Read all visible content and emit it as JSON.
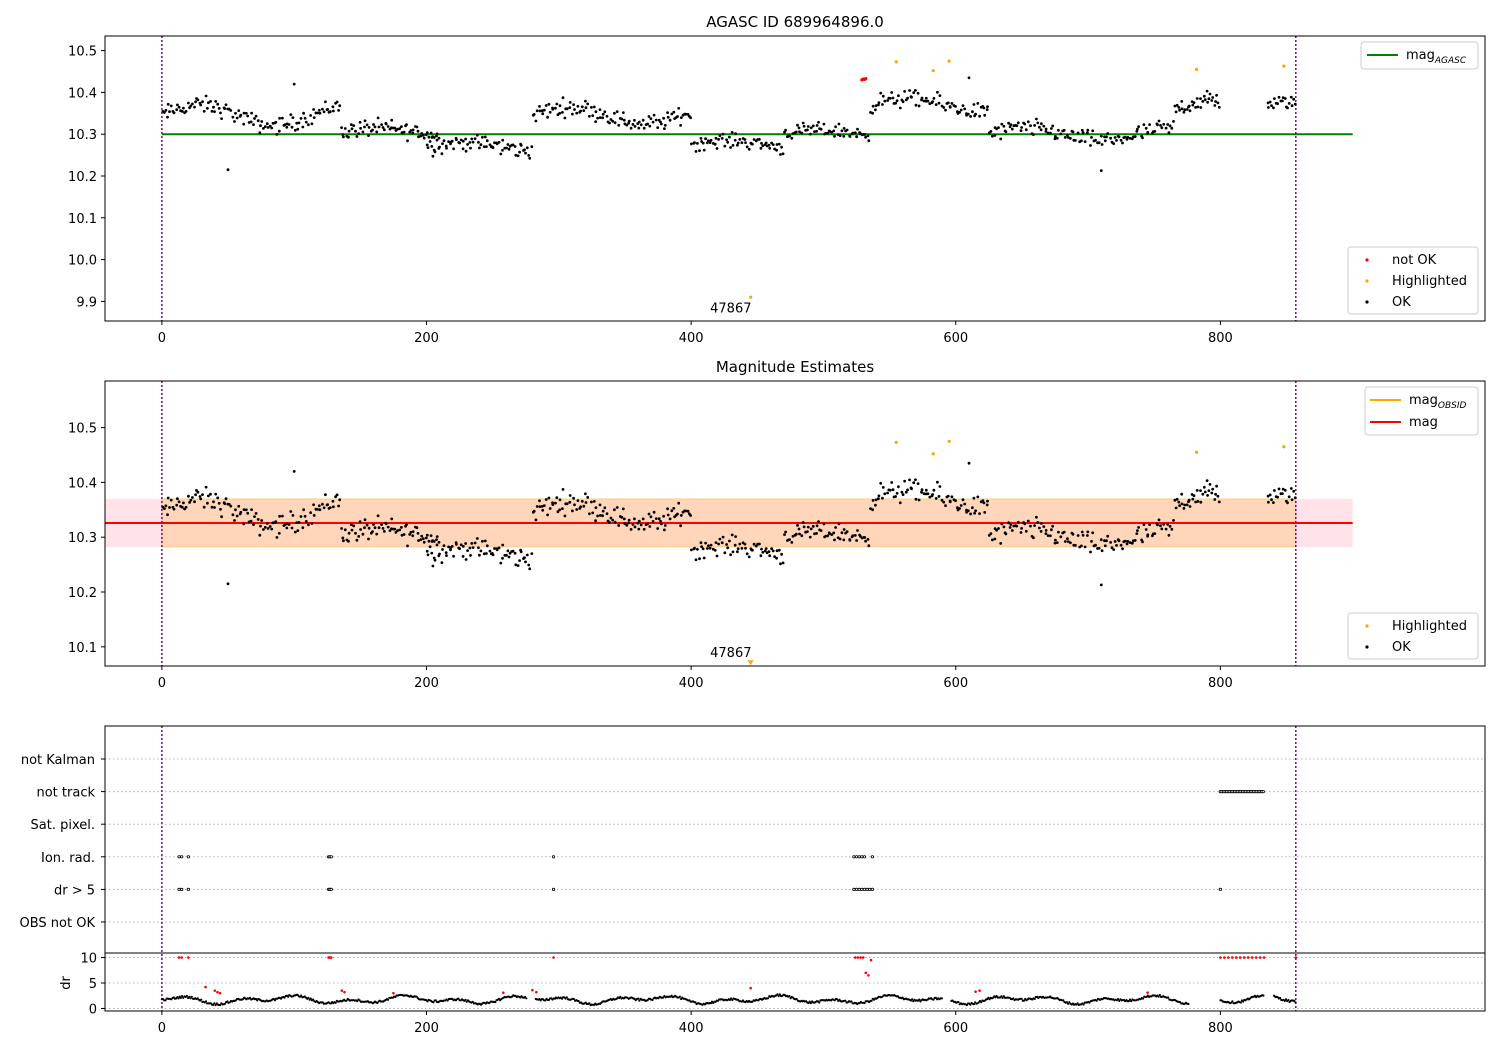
{
  "chart_data": [
    {
      "type": "scatter",
      "title": "AGASC ID 689964896.0",
      "xlim": [
        -43,
        1000
      ],
      "ylim": [
        9.853,
        10.535
      ],
      "xticks": [
        "0",
        "200",
        "400",
        "600",
        "800"
      ],
      "yticks": [
        "9.9",
        "10.0",
        "10.1",
        "10.2",
        "10.3",
        "10.4",
        "10.5"
      ],
      "ytick_values": [
        9.9,
        10.0,
        10.1,
        10.2,
        10.3,
        10.4,
        10.5
      ],
      "vlines": [
        0,
        857
      ],
      "hline": {
        "name": "mag_AGASC",
        "legend_label": "mag",
        "legend_sub": "AGASC",
        "y": 10.3,
        "x": [
          0,
          900
        ],
        "color": "#008000"
      },
      "annotation": {
        "text": "47867",
        "x": 430,
        "y": 9.873
      },
      "legend_top": {
        "position": "top-right",
        "entries": [
          {
            "label": "mag",
            "sub": "AGASC",
            "color": "#008000"
          }
        ]
      },
      "legend_bottom": {
        "position": "bottom-right",
        "entries": [
          {
            "label": "not OK",
            "color": "#ff0000"
          },
          {
            "label": "Highlighted",
            "color": "#ffa500"
          },
          {
            "label": "OK",
            "color": "#000000"
          }
        ]
      },
      "series": [
        {
          "name": "not OK",
          "color": "#ff0000",
          "points": [
            [
              529,
              10.43
            ],
            [
              530,
              10.432
            ],
            [
              531,
              10.431
            ],
            [
              532,
              10.433
            ]
          ]
        },
        {
          "name": "Highlighted",
          "color": "#ffa500",
          "points": [
            [
              445,
              9.91
            ],
            [
              555,
              10.473
            ],
            [
              583,
              10.452
            ],
            [
              595,
              10.475
            ],
            [
              782,
              10.455
            ],
            [
              848,
              10.463
            ]
          ]
        },
        {
          "name": "OK",
          "color": "#000000",
          "segments": [
            {
              "x0": 0,
              "x1": 135,
              "level": 10.345,
              "amp": 0.025,
              "spread": 0.03,
              "n": 120
            },
            {
              "x0": 135,
              "x1": 210,
              "level": 10.305,
              "amp": 0.01,
              "spread": 0.03,
              "n": 70
            },
            {
              "x0": 200,
              "x1": 280,
              "level": 10.27,
              "amp": 0.01,
              "spread": 0.03,
              "n": 75
            },
            {
              "x0": 280,
              "x1": 400,
              "level": 10.345,
              "amp": 0.02,
              "spread": 0.03,
              "n": 110
            },
            {
              "x0": 400,
              "x1": 470,
              "level": 10.275,
              "amp": 0.01,
              "spread": 0.025,
              "n": 65
            },
            {
              "x0": 470,
              "x1": 535,
              "level": 10.3,
              "amp": 0.01,
              "spread": 0.025,
              "n": 60
            },
            {
              "x0": 535,
              "x1": 625,
              "level": 10.37,
              "amp": 0.015,
              "spread": 0.03,
              "n": 80
            },
            {
              "x0": 625,
              "x1": 765,
              "level": 10.3,
              "amp": 0.015,
              "spread": 0.03,
              "n": 120
            },
            {
              "x0": 765,
              "x1": 800,
              "level": 10.36,
              "amp": 0.02,
              "spread": 0.035,
              "n": 35
            },
            {
              "x0": 835,
              "x1": 857,
              "level": 10.37,
              "amp": 0.01,
              "spread": 0.025,
              "n": 20
            }
          ],
          "extra": [
            [
              50,
              10.215
            ],
            [
              710,
              10.213
            ],
            [
              100,
              10.42
            ],
            [
              610,
              10.435
            ]
          ]
        }
      ]
    },
    {
      "type": "scatter",
      "title": "Magnitude Estimates",
      "xlim": [
        -43,
        1000
      ],
      "ylim": [
        10.065,
        10.585
      ],
      "xticks": [
        "0",
        "200",
        "400",
        "600",
        "800"
      ],
      "yticks": [
        "10.1",
        "10.2",
        "10.3",
        "10.4",
        "10.5"
      ],
      "ytick_values": [
        10.1,
        10.2,
        10.3,
        10.4,
        10.5
      ],
      "vlines": [
        0,
        857
      ],
      "hline": {
        "name": "mag",
        "y": 10.326,
        "x": [
          -43,
          900
        ],
        "color": "#ff0000"
      },
      "band": {
        "y0": 10.282,
        "y1": 10.37,
        "x": [
          -43,
          900
        ],
        "color": "#ffc0cb"
      },
      "obsid_band": {
        "y0": 10.282,
        "y1": 10.37,
        "x": [
          0,
          857
        ],
        "color": "#ffa500"
      },
      "annotation": {
        "text": "47867",
        "x": 430,
        "y": 10.081
      },
      "marker": {
        "x": 445,
        "y": 10.07,
        "color": "#ffa500"
      },
      "legend_top": {
        "position": "top-right",
        "entries": [
          {
            "label": "mag",
            "sub": "OBSID",
            "color": "#ffa500"
          },
          {
            "label": "mag",
            "color": "#ff0000"
          }
        ]
      },
      "legend_bottom": {
        "position": "bottom-right",
        "entries": [
          {
            "label": "Highlighted",
            "color": "#ffa500"
          },
          {
            "label": "OK",
            "color": "#000000"
          }
        ]
      },
      "series": [
        {
          "name": "Highlighted",
          "color": "#ffa500",
          "points": [
            [
              555,
              10.473
            ],
            [
              583,
              10.452
            ],
            [
              595,
              10.475
            ],
            [
              782,
              10.455
            ],
            [
              848,
              10.465
            ]
          ]
        },
        {
          "name": "OK",
          "color": "#000000",
          "same_as_panel": 0
        }
      ]
    },
    {
      "type": "scatter",
      "title": "",
      "xlim": [
        -43,
        1000
      ],
      "xticks": [
        "0",
        "200",
        "400",
        "600",
        "800"
      ],
      "vlines": [
        0,
        857
      ],
      "flag_rows": [
        "not Kalman",
        "not track",
        "Sat. pixel.",
        "Ion. rad.",
        "dr > 5",
        "OBS not OK"
      ],
      "flags": {
        "not track": {
          "ranges": [
            [
              800,
              833
            ]
          ]
        },
        "Ion. rad.": {
          "points": [
            13,
            15,
            20,
            126,
            127,
            128,
            296,
            523,
            525,
            527,
            529,
            531,
            537
          ]
        },
        "dr > 5": {
          "points": [
            13,
            15,
            20,
            126,
            127,
            128,
            296,
            523,
            525,
            527,
            529,
            531,
            533,
            535,
            537,
            800
          ]
        }
      },
      "dr": {
        "ylabel": "dr",
        "yticks": [
          "0",
          "5",
          "10"
        ],
        "ytick_values": [
          0,
          5,
          10
        ],
        "ylim": [
          -0.5,
          10.5
        ],
        "gaps": [
          [
            276,
            282
          ],
          [
            590,
            596
          ],
          [
            776,
            800
          ],
          [
            833,
            840
          ]
        ],
        "red_points": [
          [
            13,
            10
          ],
          [
            15,
            10
          ],
          [
            20,
            10
          ],
          [
            33,
            4.2
          ],
          [
            40,
            3.5
          ],
          [
            42,
            3.2
          ],
          [
            44,
            3
          ],
          [
            126,
            10
          ],
          [
            127,
            10
          ],
          [
            128,
            10
          ],
          [
            136,
            3.5
          ],
          [
            138,
            3.2
          ],
          [
            175,
            3
          ],
          [
            258,
            3.1
          ],
          [
            280,
            3.6
          ],
          [
            283,
            3.2
          ],
          [
            296,
            10
          ],
          [
            445,
            4
          ],
          [
            524,
            10
          ],
          [
            526,
            10
          ],
          [
            528,
            10
          ],
          [
            530,
            10
          ],
          [
            532,
            7
          ],
          [
            534,
            6.5
          ],
          [
            536,
            9.5
          ],
          [
            615,
            3.3
          ],
          [
            618,
            3.5
          ],
          [
            745,
            3.1
          ],
          [
            800,
            10
          ],
          [
            803,
            10
          ],
          [
            806,
            10
          ],
          [
            809,
            10
          ],
          [
            812,
            10
          ],
          [
            815,
            10
          ],
          [
            818,
            10
          ],
          [
            821,
            10
          ],
          [
            824,
            10
          ],
          [
            827,
            10
          ],
          [
            830,
            10
          ],
          [
            833,
            10
          ],
          [
            857,
            10
          ]
        ]
      }
    }
  ]
}
